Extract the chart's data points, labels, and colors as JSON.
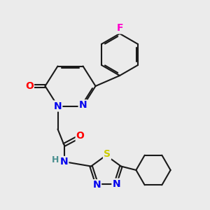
{
  "bg_color": "#ebebeb",
  "bond_color": "#1a1a1a",
  "bond_width": 1.5,
  "atom_colors": {
    "N": "#0000ee",
    "O": "#ff0000",
    "S": "#cccc00",
    "F": "#ff00cc",
    "H": "#4a9090",
    "C": "#1a1a1a"
  },
  "font_size_atom": 10,
  "font_size_H": 9,
  "xlim": [
    0,
    10
  ],
  "ylim": [
    0,
    10
  ]
}
